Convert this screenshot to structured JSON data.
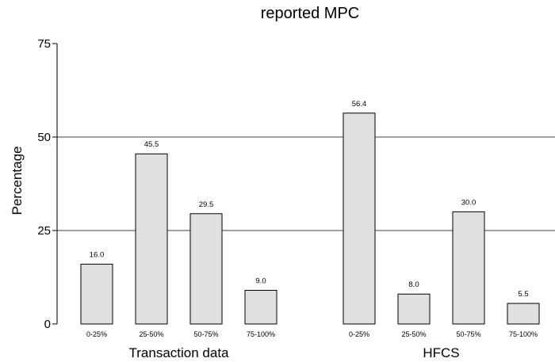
{
  "chart_data": {
    "type": "bar",
    "title": "reported MPC",
    "ylabel": "Percentage",
    "xlabel": "",
    "ylim": [
      0,
      75
    ],
    "yticks": [
      0,
      25,
      50,
      75
    ],
    "grid": "horizontal lines at 25 and 50",
    "bar_color": "#e0e0e0",
    "bar_edge_color": "#000000",
    "groups": [
      {
        "name": "Transaction data",
        "categories": [
          "0-25%",
          "25-50%",
          "50-75%",
          "75-100%"
        ],
        "values": [
          16.0,
          45.5,
          29.5,
          9.0
        ],
        "value_labels": [
          "16.0",
          "45.5",
          "29.5",
          "9.0"
        ]
      },
      {
        "name": "HFCS",
        "categories": [
          "0-25%",
          "25-50%",
          "50-75%",
          "75-100%"
        ],
        "values": [
          56.4,
          8.0,
          30.0,
          5.5
        ],
        "value_labels": [
          "56.4",
          "8.0",
          "30.0",
          "5.5"
        ]
      }
    ]
  }
}
